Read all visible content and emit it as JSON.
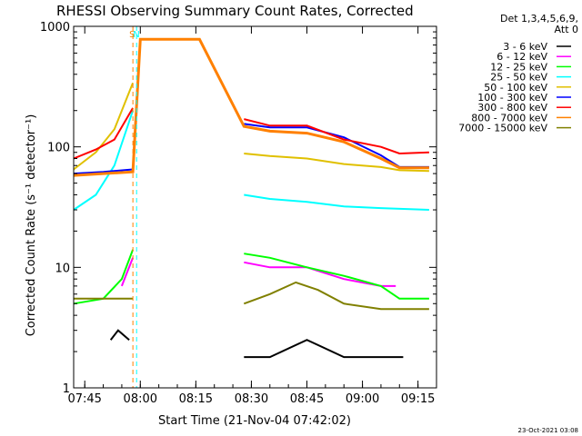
{
  "chart_data": {
    "type": "line",
    "title": "RHESSI Observing Summary Count Rates, Corrected",
    "xlabel": "Start Time (21-Nov-04 07:42:02)",
    "ylabel": "Corrected Count Rate (s⁻¹ detector⁻¹)",
    "y_scale": "log",
    "xlim": [
      "07:42",
      "09:20"
    ],
    "ylim": [
      1,
      1000
    ],
    "x_ticks": [
      "07:45",
      "08:00",
      "08:15",
      "08:30",
      "08:45",
      "09:00",
      "09:15"
    ],
    "y_ticks": [
      "1",
      "10",
      "100",
      "1000"
    ],
    "legend_header": [
      "Det 1,3,4,5,6,9,",
      "Att 0"
    ],
    "legend_position": "right",
    "footer": "23-Oct-2021 03:08",
    "markers": [
      {
        "label": "S",
        "time": "07:58",
        "color": "#ff8000"
      },
      {
        "label": "N",
        "time": "07:59",
        "color": "#00ffff"
      }
    ],
    "series": [
      {
        "name": "3 - 6 keV",
        "color": "#000000",
        "values": [
          [
            "07:52",
            2.5
          ],
          [
            "07:54",
            3.0
          ],
          [
            "07:57",
            2.5
          ],
          [
            "08:28",
            1.8
          ],
          [
            "08:35",
            1.8
          ],
          [
            "08:45",
            2.5
          ],
          [
            "08:55",
            1.8
          ],
          [
            "09:05",
            1.8
          ],
          [
            "09:11",
            1.8
          ]
        ]
      },
      {
        "name": "6 - 12 keV",
        "color": "#ff00ff",
        "values": [
          [
            "07:55",
            7
          ],
          [
            "07:58",
            12
          ],
          [
            "08:28",
            11
          ],
          [
            "08:35",
            10
          ],
          [
            "08:45",
            10
          ],
          [
            "08:55",
            8
          ],
          [
            "09:05",
            7
          ],
          [
            "09:09",
            7
          ]
        ]
      },
      {
        "name": "12 - 25 keV",
        "color": "#00ff00",
        "values": [
          [
            "07:42",
            5
          ],
          [
            "07:50",
            5.5
          ],
          [
            "07:55",
            8
          ],
          [
            "07:58",
            14
          ],
          [
            "08:28",
            13
          ],
          [
            "08:35",
            12
          ],
          [
            "08:45",
            10
          ],
          [
            "08:55",
            8.5
          ],
          [
            "09:05",
            7
          ],
          [
            "09:10",
            5.5
          ],
          [
            "09:18",
            5.5
          ]
        ]
      },
      {
        "name": "25 - 50 keV",
        "color": "#00ffff",
        "values": [
          [
            "07:42",
            30
          ],
          [
            "07:48",
            40
          ],
          [
            "07:53",
            70
          ],
          [
            "07:58",
            200
          ],
          [
            "08:28",
            40
          ],
          [
            "08:35",
            37
          ],
          [
            "08:45",
            35
          ],
          [
            "08:55",
            32
          ],
          [
            "09:05",
            31
          ],
          [
            "09:18",
            30
          ]
        ]
      },
      {
        "name": "50 - 100 keV",
        "color": "#e0c000",
        "values": [
          [
            "07:42",
            65
          ],
          [
            "07:48",
            90
          ],
          [
            "07:53",
            140
          ],
          [
            "07:58",
            340
          ],
          [
            "08:28",
            88
          ],
          [
            "08:35",
            84
          ],
          [
            "08:45",
            80
          ],
          [
            "08:55",
            72
          ],
          [
            "09:05",
            68
          ],
          [
            "09:10",
            64
          ],
          [
            "09:18",
            63
          ]
        ]
      },
      {
        "name": "100 - 300 keV",
        "color": "#0000ff",
        "values": [
          [
            "07:42",
            60
          ],
          [
            "07:50",
            62
          ],
          [
            "07:58",
            65
          ],
          [
            "08:28",
            155
          ],
          [
            "08:35",
            145
          ],
          [
            "08:45",
            145
          ],
          [
            "08:55",
            120
          ],
          [
            "09:05",
            85
          ],
          [
            "09:10",
            68
          ],
          [
            "09:18",
            68
          ]
        ]
      },
      {
        "name": "300 - 800 keV",
        "color": "#ff0000",
        "values": [
          [
            "07:42",
            80
          ],
          [
            "07:48",
            95
          ],
          [
            "07:53",
            115
          ],
          [
            "07:58",
            210
          ],
          [
            "08:28",
            170
          ],
          [
            "08:35",
            150
          ],
          [
            "08:45",
            150
          ],
          [
            "08:55",
            115
          ],
          [
            "09:05",
            100
          ],
          [
            "09:10",
            88
          ],
          [
            "09:18",
            90
          ]
        ]
      },
      {
        "name": "800 - 7000 keV",
        "color": "#ff8000",
        "values": [
          [
            "07:42",
            58
          ],
          [
            "07:50",
            60
          ],
          [
            "07:58",
            62
          ],
          [
            "08:00",
            780
          ],
          [
            "08:16",
            780
          ],
          [
            "08:28",
            148
          ],
          [
            "08:35",
            135
          ],
          [
            "08:45",
            130
          ],
          [
            "08:55",
            110
          ],
          [
            "09:05",
            80
          ],
          [
            "09:10",
            67
          ],
          [
            "09:18",
            67
          ]
        ]
      },
      {
        "name": "7000 - 15000 keV",
        "color": "#808000",
        "values": [
          [
            "07:42",
            5.5
          ],
          [
            "07:50",
            5.5
          ],
          [
            "07:58",
            5.5
          ],
          [
            "08:28",
            5
          ],
          [
            "08:35",
            6
          ],
          [
            "08:42",
            7.5
          ],
          [
            "08:48",
            6.5
          ],
          [
            "08:55",
            5
          ],
          [
            "09:05",
            4.5
          ],
          [
            "09:18",
            4.5
          ]
        ]
      }
    ]
  }
}
